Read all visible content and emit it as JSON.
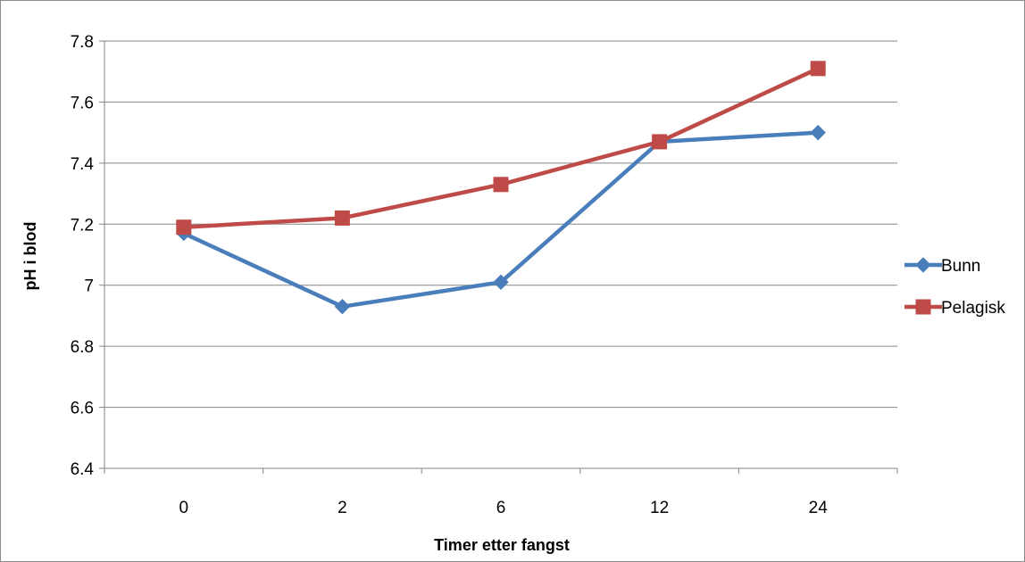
{
  "chart_data": {
    "type": "line",
    "title": "",
    "xlabel": "Timer etter fangst",
    "ylabel": "pH i blod",
    "categories": [
      "0",
      "2",
      "6",
      "12",
      "24"
    ],
    "ylim": [
      6.4,
      7.8
    ],
    "yticks": [
      "6.4",
      "6.6",
      "6.8",
      "7",
      "7.2",
      "7.4",
      "7.6",
      "7.8"
    ],
    "grid": "horizontal",
    "legend": "right",
    "series": [
      {
        "name": "Bunn",
        "values": [
          7.17,
          6.93,
          7.01,
          7.47,
          7.5
        ],
        "color": "#4a7ebb",
        "marker": "diamond"
      },
      {
        "name": "Pelagisk",
        "values": [
          7.19,
          7.22,
          7.33,
          7.47,
          7.71
        ],
        "color": "#be4b48",
        "marker": "square"
      }
    ]
  }
}
